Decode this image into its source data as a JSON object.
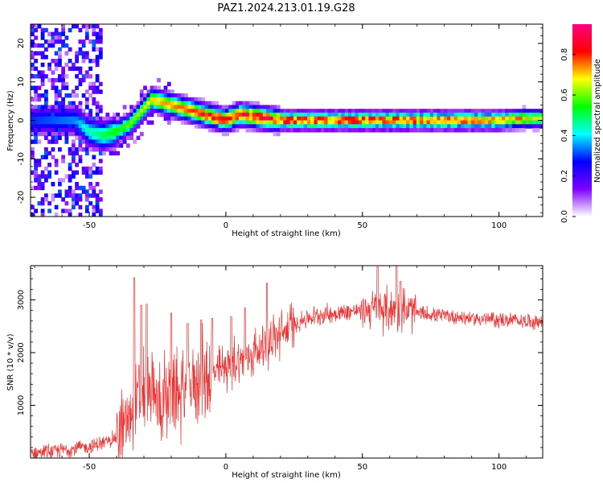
{
  "title": "PAZ1.2024.213.01.19.G28",
  "chart_data": [
    {
      "type": "heatmap",
      "xlabel": "Height of straight line (km)",
      "ylabel": "Frequency (Hz)",
      "xlim": [
        -71.5,
        116
      ],
      "ylim": [
        -25,
        25
      ],
      "x_ticks": [
        -50,
        0,
        50,
        100
      ],
      "y_ticks": [
        -20,
        -10,
        0,
        10,
        20
      ],
      "colorbar": {
        "label": "Normalized spectral amplitude",
        "range": [
          0,
          0.95
        ],
        "ticks": [
          0.0,
          0.2,
          0.4,
          0.6,
          0.8
        ],
        "colors": [
          "#ffffff",
          "#7f00ff",
          "#0000ff",
          "#00ffff",
          "#00ff00",
          "#ffff00",
          "#ff0000",
          "#ff0080"
        ]
      },
      "ridge": {
        "x": [
          -71.5,
          -55,
          -50,
          -45,
          -40,
          -35,
          -30,
          -27,
          -25,
          -20,
          -15,
          -10,
          -5,
          0,
          5,
          10,
          15,
          20,
          25,
          40,
          60,
          80,
          100,
          110,
          116
        ],
        "frequency": [
          0,
          0,
          -3,
          -4,
          -3,
          -1,
          3,
          5.5,
          5,
          4,
          3,
          2,
          1,
          0,
          1.5,
          1,
          0.5,
          0,
          0,
          0,
          0,
          0,
          0,
          0.5,
          0.5
        ],
        "peak_amplitude": [
          0.3,
          0.35,
          0.45,
          0.5,
          0.55,
          0.6,
          0.65,
          0.7,
          0.72,
          0.75,
          0.78,
          0.8,
          0.82,
          0.85,
          0.85,
          0.85,
          0.85,
          0.82,
          0.8,
          0.8,
          0.78,
          0.75,
          0.72,
          0.68,
          0.65
        ]
      }
    },
    {
      "type": "line",
      "xlabel": "Height of straight line (km)",
      "ylabel": "SNR (10 * v/v)",
      "xlim": [
        -71.5,
        116
      ],
      "ylim": [
        0,
        3650
      ],
      "x_ticks": [
        -50,
        0,
        50,
        100
      ],
      "y_ticks": [
        1000,
        2000,
        3000
      ],
      "series": [
        {
          "color": "#ee3333",
          "x": [
            -71.5,
            -65,
            -60,
            -55,
            -50,
            -45,
            -40,
            -36,
            -33,
            -30,
            -25,
            -20,
            -15,
            -10,
            -5,
            0,
            5,
            10,
            15,
            20,
            25,
            30,
            35,
            40,
            45,
            50,
            55,
            60,
            65,
            70,
            80,
            90,
            100,
            110,
            116
          ],
          "y": [
            100,
            120,
            150,
            180,
            220,
            280,
            400,
            700,
            1000,
            1300,
            1050,
            1150,
            1250,
            1550,
            1550,
            1750,
            1850,
            2000,
            2150,
            2350,
            2550,
            2650,
            2720,
            2750,
            2780,
            2800,
            2820,
            2820,
            2800,
            2750,
            2700,
            2650,
            2620,
            2600,
            2580
          ]
        }
      ],
      "spikes": {
        "x": [
          -33.5,
          -31,
          -29,
          -20,
          -14,
          -9,
          -5,
          2,
          7,
          15,
          55.5,
          62.5,
          64
        ],
        "y": [
          3420,
          2900,
          2920,
          2750,
          2550,
          2620,
          2650,
          2680,
          2850,
          3320,
          3630,
          3650,
          3350
        ]
      }
    }
  ]
}
